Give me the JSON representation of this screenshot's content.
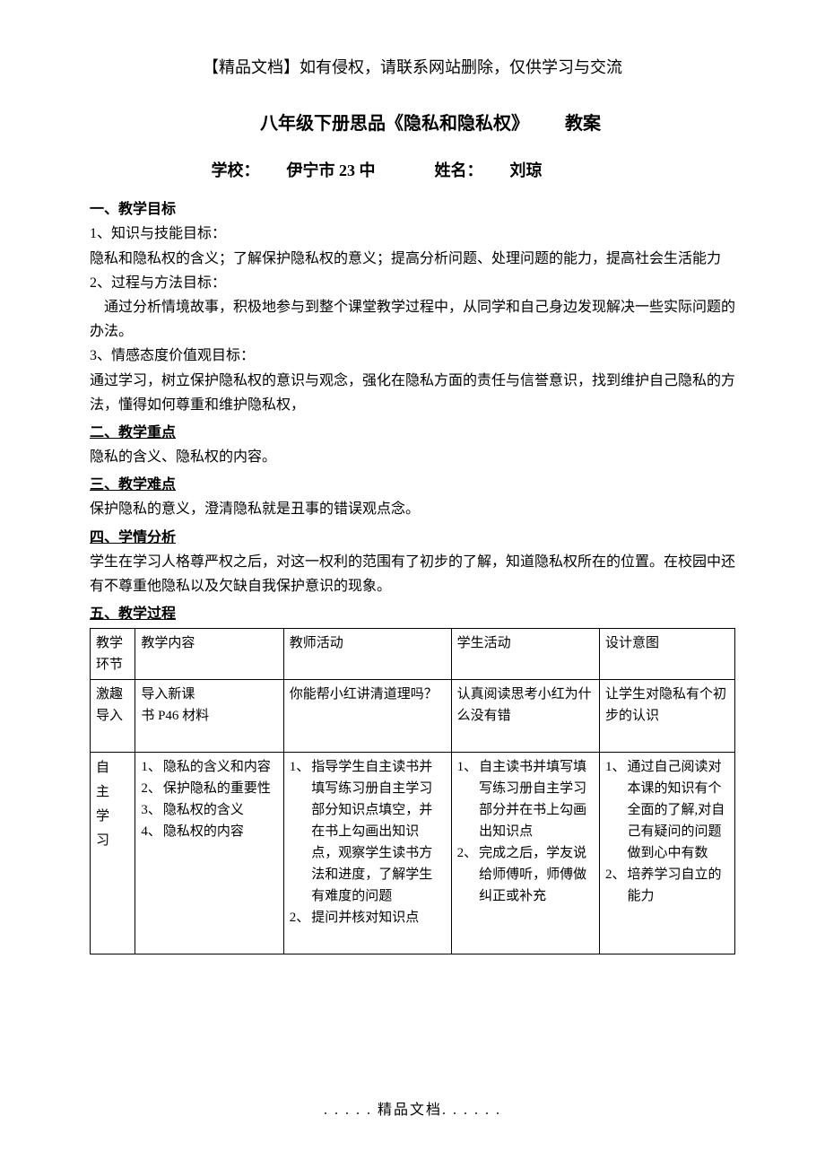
{
  "header_notice": "【精品文档】如有侵权，请联系网站删除，仅供学习与交流",
  "title_prefix": "",
  "title_main": "八年级下册思品《隐私和隐私权》",
  "title_suffix": "教案",
  "info": {
    "school_label": "学校：",
    "school_value": "伊宁市 23 中",
    "name_label": "姓名：",
    "name_value": "刘琼"
  },
  "sections": {
    "s1": {
      "heading": "一、教学目标",
      "item1_label": "1",
      "item1_title": "、知识与技能目标：",
      "item1_body": "隐私和隐私权的含义；了解保护隐私权的意义；提高分析问题、处理问题的能力，提高社会生活能力",
      "item2_label": "2",
      "item2_title": "、过程与方法目标：",
      "item2_body": "通过分析情境故事，积极地参与到整个课堂教学过程中，从同学和自己身边发现解决一些实际问题的办法。",
      "item3_label": "3",
      "item3_title": "、情感态度价值观目标：",
      "item3_body": "通过学习，树立保护隐私权的意识与观念，强化在隐私方面的责任与信誉意识，找到维护自己隐私的方法，懂得如何尊重和维护隐私权，"
    },
    "s2": {
      "heading": "二、教学重点",
      "body": "隐私的含义、隐私权的内容。"
    },
    "s3": {
      "heading": "三、教学难点",
      "body": "保护隐私的意义，澄清隐私就是丑事的错误观点念。"
    },
    "s4": {
      "heading": "四、学情分析",
      "body": "学生在学习人格尊严权之后，对这一权利的范围有了初步的了解，知道隐私权所在的位置。在校园中还有不尊重他隐私以及欠缺自我保护意识的现象。"
    },
    "s5": {
      "heading": "五、教学过程"
    }
  },
  "table": {
    "headers": {
      "c1": "教学环节",
      "c2": "教学内容",
      "c3": "教师活动",
      "c4": "学生活动",
      "c5": "设计意图"
    },
    "row1": {
      "c1a": "激趣",
      "c1b": "导入",
      "c2a": "导入新课",
      "c2b": "书 P46 材料",
      "c3": "你能帮小红讲清道理吗？",
      "c4": "认真阅读思考小红为什么没有错",
      "c5": "让学生对隐私有个初步的认识"
    },
    "row2": {
      "c1": "自主学习",
      "c2_items": [
        {
          "n": "1、",
          "t": "隐私的含义和内容"
        },
        {
          "n": "2、",
          "t": "保护隐私的重要性"
        },
        {
          "n": "3、",
          "t": "隐私权的含义"
        },
        {
          "n": "4、",
          "t": "隐私权的内容"
        }
      ],
      "c3_items": [
        {
          "n": "1、",
          "t": "指导学生自主读书并填写练习册自主学习部分知识点填空，并在书上勾画出知识点，观察学生读书方法和进度，了解学生有难度的问题"
        },
        {
          "n": "2、",
          "t": "提问并核对知识点"
        }
      ],
      "c4_items": [
        {
          "n": "1、",
          "t": "自主读书并填写填写练习册自主学习部分并在书上勾画出知识点"
        },
        {
          "n": "2、",
          "t": "完成之后，学友说给师傅听，师傅做纠正或补充"
        }
      ],
      "c5_items": [
        {
          "n": "1、",
          "t": "通过自己阅读对本课的知识有个全面的了解,对自己有疑问的问题做到心中有数"
        },
        {
          "n": "2、",
          "t": "培养学习自立的能力"
        }
      ]
    }
  },
  "footer": ". . . . . 精品文档. . . . . ."
}
